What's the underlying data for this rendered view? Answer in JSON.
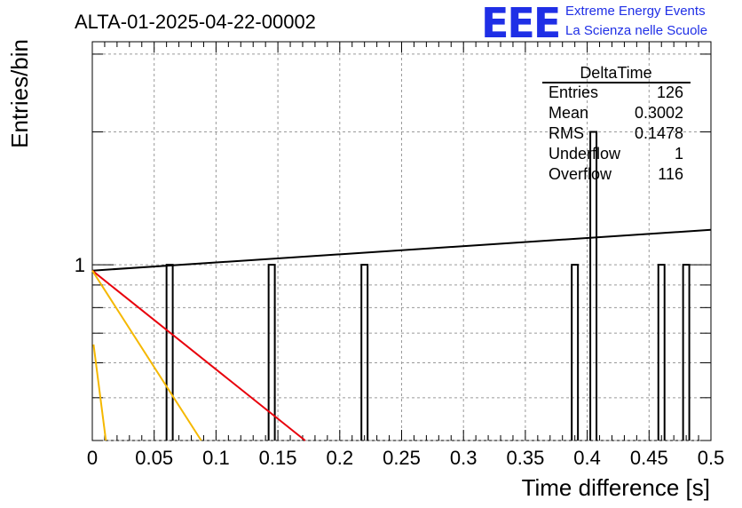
{
  "page": {
    "title": "ALTA-01-2025-04-22-00002"
  },
  "logo": {
    "mark": "EEE",
    "line1": "Extreme Energy Events",
    "line2": "La Scienza nelle Scuole"
  },
  "stats_box": {
    "title": "DeltaTime",
    "rows": [
      {
        "label": "Entries",
        "value": "126"
      },
      {
        "label": "Mean",
        "value": "0.3002"
      },
      {
        "label": "RMS",
        "value": "0.1478"
      },
      {
        "label": "Underflow",
        "value": "1"
      },
      {
        "label": "Overflow",
        "value": "116"
      }
    ]
  },
  "chart_data": {
    "type": "bar",
    "title": "ALTA-01-2025-04-22-00002",
    "xlabel": "Time difference [s]",
    "ylabel": "Entries/bin",
    "xlim": [
      0,
      0.5
    ],
    "ylim": [
      0.4,
      3.2
    ],
    "log_y": true,
    "grid": true,
    "x_ticks": [
      "0",
      "0.05",
      "0.1",
      "0.15",
      "0.2",
      "0.25",
      "0.3",
      "0.35",
      "0.4",
      "0.45",
      "0.5"
    ],
    "y_ticks": [
      "1"
    ],
    "bin_width": 0.005,
    "bins": [
      {
        "x": 0.06,
        "count": 1
      },
      {
        "x": 0.1425,
        "count": 1
      },
      {
        "x": 0.2175,
        "count": 1
      },
      {
        "x": 0.3875,
        "count": 1
      },
      {
        "x": 0.4025,
        "count": 2
      },
      {
        "x": 0.4575,
        "count": 1
      },
      {
        "x": 0.4775,
        "count": 1
      }
    ],
    "fit_lines": [
      {
        "color": "#000000",
        "points": [
          [
            0,
            0.97
          ],
          [
            0.5,
            1.2
          ]
        ]
      },
      {
        "color": "#e8000b",
        "points": [
          [
            0,
            0.97
          ],
          [
            0.172,
            0.4
          ]
        ]
      },
      {
        "color": "#f5b800",
        "points": [
          [
            0,
            0.97
          ],
          [
            0.088,
            0.4
          ]
        ]
      },
      {
        "color": "#f5b800",
        "points": [
          [
            0.001,
            0.66
          ],
          [
            0.011,
            0.4
          ]
        ]
      }
    ]
  }
}
